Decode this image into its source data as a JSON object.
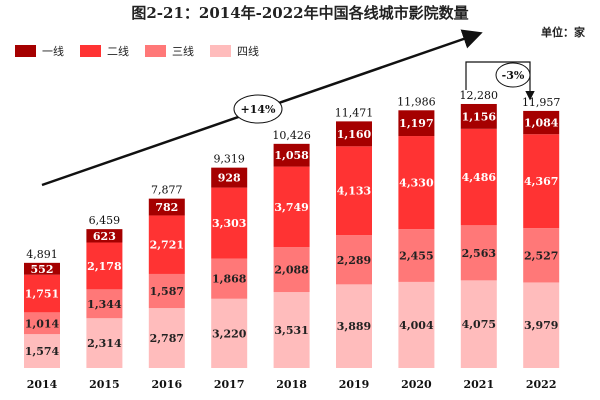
{
  "chart_data": {
    "type": "bar",
    "stacked": true,
    "title": "图2-21：2014年-2022年中国各线城市影院数量",
    "unit_label": "单位：家",
    "categories": [
      "2014",
      "2015",
      "2016",
      "2017",
      "2018",
      "2019",
      "2020",
      "2021",
      "2022"
    ],
    "series": [
      {
        "name": "一线",
        "color": "#a50000",
        "values": [
          552,
          623,
          782,
          928,
          1058,
          1160,
          1197,
          1156,
          1084
        ]
      },
      {
        "name": "二线",
        "color": "#ff3333",
        "values": [
          1751,
          2178,
          2721,
          3303,
          3749,
          4133,
          4330,
          4486,
          4367
        ]
      },
      {
        "name": "三线",
        "color": "#ff7878",
        "values": [
          1014,
          1344,
          1587,
          1868,
          2088,
          2289,
          2455,
          2563,
          2527
        ]
      },
      {
        "name": "四线",
        "color": "#ffbcbc",
        "values": [
          1574,
          2314,
          2787,
          3220,
          3531,
          3889,
          4004,
          4075,
          3979
        ]
      }
    ],
    "totals": [
      "4,891",
      "6,459",
      "7,877",
      "9,319",
      "10,426",
      "11,471",
      "11,986",
      "12,280",
      "11,957"
    ],
    "annotations": {
      "growth": "+14%",
      "decline": "-3%"
    },
    "legend_position": "top-left",
    "grid": false,
    "y_axis_visible": false
  }
}
